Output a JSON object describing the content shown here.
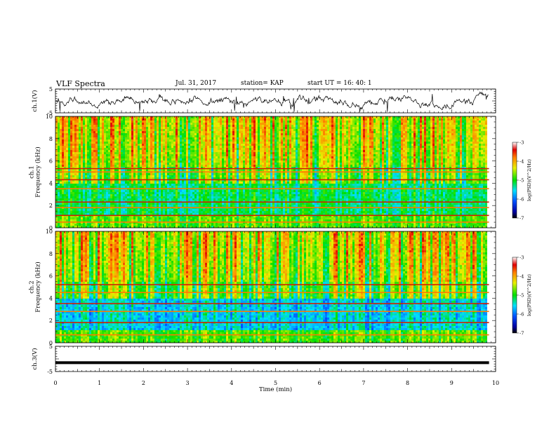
{
  "header": {
    "title": "VLF Spectra",
    "date": "Jul. 31, 2017",
    "station": "station= KAP",
    "start": "start UT =  16: 40: 1"
  },
  "chart_data": [
    {
      "type": "line",
      "name": "ch1-waveform",
      "ylabel": "ch.1(V)",
      "ylim": [
        -5,
        5
      ],
      "yticks": [
        "5",
        "-5"
      ],
      "xlim": [
        0,
        10
      ]
    },
    {
      "type": "heatmap",
      "name": "ch1-spectrogram",
      "ylabel": "ch.1\nFrequency (kHz)",
      "ylim": [
        0,
        10
      ],
      "yticks": [
        "0",
        "2",
        "4",
        "6",
        "8",
        "10"
      ],
      "xlim": [
        0,
        10
      ],
      "colorbar": {
        "label": "log(PSD)(V^2/Hz)",
        "range": [
          -7,
          -3
        ],
        "ticks": [
          "-3",
          "-4",
          "-5",
          "-6",
          "-7"
        ]
      },
      "bands_khz": [
        0.5,
        1.1,
        1.8,
        2.3,
        3.5,
        4.3,
        5.0,
        5.3
      ]
    },
    {
      "type": "heatmap",
      "name": "ch2-spectrogram",
      "ylabel": "ch.2\nFrequency (kHz)",
      "ylim": [
        0,
        10
      ],
      "yticks": [
        "0",
        "2",
        "4",
        "6",
        "8",
        "10"
      ],
      "xlim": [
        0,
        10
      ],
      "colorbar": {
        "label": "log(PSD)(V^2/Hz)",
        "range": [
          -7,
          -3
        ],
        "ticks": [
          "-3",
          "-4",
          "-5",
          "-6",
          "-7"
        ]
      },
      "bands_khz": [
        0.7,
        1.8,
        2.8,
        3.5,
        4.5,
        5.2
      ]
    },
    {
      "type": "line",
      "name": "ch3-waveform",
      "ylabel": "ch.3(V)",
      "ylim": [
        -5,
        5
      ],
      "yticks": [
        "5",
        "-5"
      ],
      "xlim": [
        0,
        10
      ],
      "constant_value": -1.5
    }
  ],
  "xaxis": {
    "label": "Time (min)",
    "ticks": [
      "0",
      "1",
      "2",
      "3",
      "4",
      "5",
      "6",
      "7",
      "8",
      "9",
      "10"
    ],
    "data_end_min": 9.85
  }
}
